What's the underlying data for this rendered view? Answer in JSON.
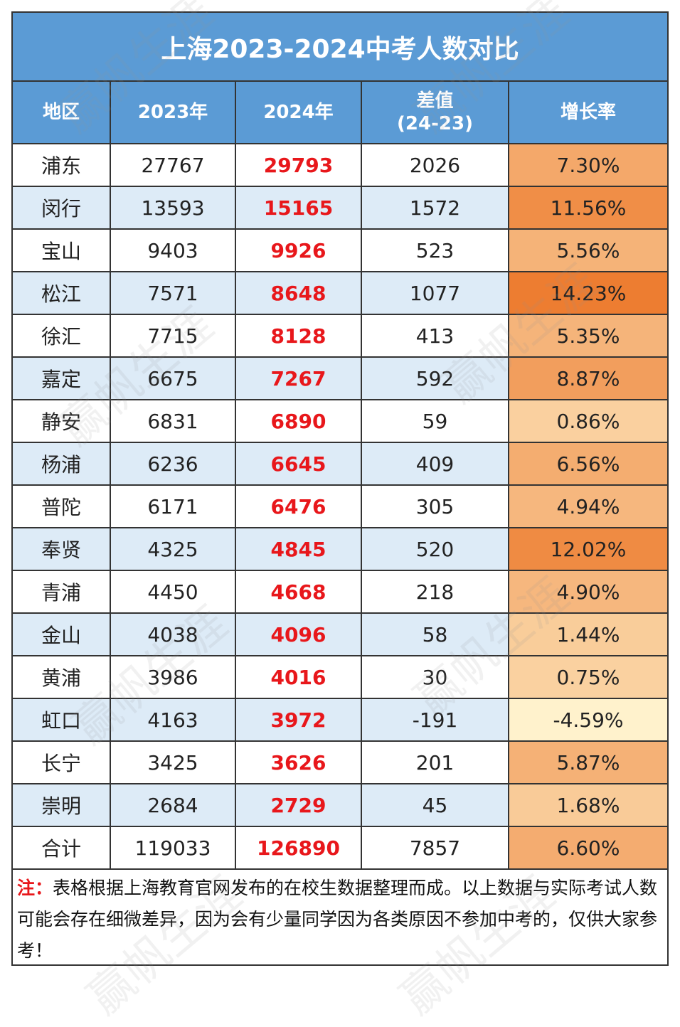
{
  "title": "上海2023-2024中考人数对比",
  "watermark": "赢帆生涯",
  "headers": {
    "region": "地区",
    "y2023": "2023年",
    "y2024": "2024年",
    "diff_line1": "差值",
    "diff_line2": "(24-23)",
    "rate": "增长率"
  },
  "rows": [
    {
      "region": "浦东",
      "y2023": "27767",
      "y2024": "29793",
      "diff": "2026",
      "rate": "7.30%"
    },
    {
      "region": "闵行",
      "y2023": "13593",
      "y2024": "15165",
      "diff": "1572",
      "rate": "11.56%"
    },
    {
      "region": "宝山",
      "y2023": "9403",
      "y2024": "9926",
      "diff": "523",
      "rate": "5.56%"
    },
    {
      "region": "松江",
      "y2023": "7571",
      "y2024": "8648",
      "diff": "1077",
      "rate": "14.23%"
    },
    {
      "region": "徐汇",
      "y2023": "7715",
      "y2024": "8128",
      "diff": "413",
      "rate": "5.35%"
    },
    {
      "region": "嘉定",
      "y2023": "6675",
      "y2024": "7267",
      "diff": "592",
      "rate": "8.87%"
    },
    {
      "region": "静安",
      "y2023": "6831",
      "y2024": "6890",
      "diff": "59",
      "rate": "0.86%"
    },
    {
      "region": "杨浦",
      "y2023": "6236",
      "y2024": "6645",
      "diff": "409",
      "rate": "6.56%"
    },
    {
      "region": "普陀",
      "y2023": "6171",
      "y2024": "6476",
      "diff": "305",
      "rate": "4.94%"
    },
    {
      "region": "奉贤",
      "y2023": "4325",
      "y2024": "4845",
      "diff": "520",
      "rate": "12.02%"
    },
    {
      "region": "青浦",
      "y2023": "4450",
      "y2024": "4668",
      "diff": "218",
      "rate": "4.90%"
    },
    {
      "region": "金山",
      "y2023": "4038",
      "y2024": "4096",
      "diff": "58",
      "rate": "1.44%"
    },
    {
      "region": "黄浦",
      "y2023": "3986",
      "y2024": "4016",
      "diff": "30",
      "rate": "0.75%"
    },
    {
      "region": "虹口",
      "y2023": "4163",
      "y2024": "3972",
      "diff": "-191",
      "rate": "-4.59%"
    },
    {
      "region": "长宁",
      "y2023": "3425",
      "y2024": "3626",
      "diff": "201",
      "rate": "5.87%"
    },
    {
      "region": "崇明",
      "y2023": "2684",
      "y2024": "2729",
      "diff": "45",
      "rate": "1.68%"
    },
    {
      "region": "合计",
      "y2023": "119033",
      "y2024": "126890",
      "diff": "7857",
      "rate": "6.60%"
    }
  ],
  "note": {
    "label": "注：",
    "text": "表格根据上海教育官网发布的在校生数据整理而成。以上数据与实际考试人数可能会存在细微差异，因为会有少量同学因为各类原因不参加中考的，仅供大家参考！"
  },
  "colors": {
    "header_bg": "#5b9bd5",
    "row_alt_bg": "#ddebf7",
    "value_2024": "#e8171b",
    "rate_low": "#fff2cc",
    "rate_high": "#ed7d31"
  },
  "chart_data": {
    "type": "table",
    "title": "上海2023-2024中考人数对比",
    "columns": [
      "地区",
      "2023年",
      "2024年",
      "差值(24-23)",
      "增长率"
    ],
    "rows": [
      [
        "浦东",
        27767,
        29793,
        2026,
        7.3
      ],
      [
        "闵行",
        13593,
        15165,
        1572,
        11.56
      ],
      [
        "宝山",
        9403,
        9926,
        523,
        5.56
      ],
      [
        "松江",
        7571,
        8648,
        1077,
        14.23
      ],
      [
        "徐汇",
        7715,
        8128,
        413,
        5.35
      ],
      [
        "嘉定",
        6675,
        7267,
        592,
        8.87
      ],
      [
        "静安",
        6831,
        6890,
        59,
        0.86
      ],
      [
        "杨浦",
        6236,
        6645,
        409,
        6.56
      ],
      [
        "普陀",
        6171,
        6476,
        305,
        4.94
      ],
      [
        "奉贤",
        4325,
        4845,
        520,
        12.02
      ],
      [
        "青浦",
        4450,
        4668,
        218,
        4.9
      ],
      [
        "金山",
        4038,
        4096,
        58,
        1.44
      ],
      [
        "黄浦",
        3986,
        4016,
        30,
        0.75
      ],
      [
        "虹口",
        4163,
        3972,
        -191,
        -4.59
      ],
      [
        "长宁",
        3425,
        3626,
        201,
        5.87
      ],
      [
        "崇明",
        2684,
        2729,
        45,
        1.68
      ],
      [
        "合计",
        119033,
        126890,
        7857,
        6.6
      ]
    ]
  }
}
